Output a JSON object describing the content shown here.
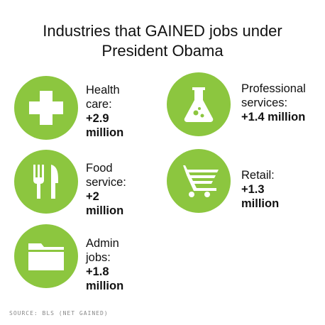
{
  "title": {
    "line1": "Industries that GAINED jobs under",
    "line2": "President Obama"
  },
  "colors": {
    "accent": "#8cc63f",
    "icon": "#ffffff",
    "text": "#111111",
    "source": "#888888"
  },
  "items": [
    {
      "name": "Health\ncare:",
      "value": "+2.9 million",
      "icon": "cross-icon"
    },
    {
      "name": "Professional\nservices:",
      "value": "+1.4 million",
      "icon": "flask-icon"
    },
    {
      "name": "Food\nservice:",
      "value": "+2 million",
      "icon": "fork-knife-icon"
    },
    {
      "name": "Retail:",
      "value": "+1.3 million",
      "icon": "cart-icon"
    },
    {
      "name": "Admin\njobs:",
      "value": "+1.8 million",
      "icon": "folder-icon"
    }
  ],
  "source": "SOURCE: BLS (NET GAINED)",
  "chart_data": {
    "type": "table",
    "title": "Industries that GAINED jobs under President Obama",
    "categories": [
      "Health care",
      "Professional services",
      "Food service",
      "Retail",
      "Admin jobs"
    ],
    "values_label": [
      "+2.9 million",
      "+1.4 million",
      "+2 million",
      "+1.3 million",
      "+1.8 million"
    ],
    "values": [
      2.9,
      1.4,
      2.0,
      1.3,
      1.8
    ],
    "unit": "million"
  }
}
